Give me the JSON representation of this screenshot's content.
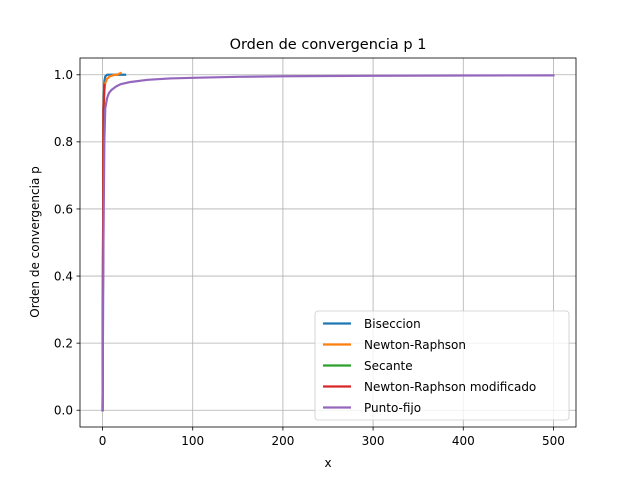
{
  "chart_data": {
    "type": "line",
    "title": "Orden de convergencia p 1",
    "xlabel": "x",
    "ylabel": "Orden de convergencia p",
    "xlim": [
      -25,
      525
    ],
    "ylim": [
      -0.05,
      1.05
    ],
    "xticks": [
      0,
      100,
      200,
      300,
      400,
      500
    ],
    "xtick_labels": [
      "0",
      "100",
      "200",
      "300",
      "400",
      "500"
    ],
    "yticks": [
      0.0,
      0.2,
      0.4,
      0.6,
      0.8,
      1.0
    ],
    "ytick_labels": [
      "0.0",
      "0.2",
      "0.4",
      "0.6",
      "0.8",
      "1.0"
    ],
    "grid": true,
    "legend_position": "lower-right",
    "series": [
      {
        "name": "Biseccion",
        "color": "#1f77b4",
        "x": [
          0,
          1,
          2,
          3,
          5,
          10,
          15,
          20,
          25
        ],
        "y": [
          0.0,
          0.9,
          0.98,
          0.995,
          1.0,
          1.0,
          1.0,
          1.0,
          1.0
        ]
      },
      {
        "name": "Newton-Raphson",
        "color": "#ff7f0e",
        "x": [
          0,
          1,
          2,
          3,
          5,
          8,
          12,
          16,
          20
        ],
        "y": [
          0.0,
          0.88,
          0.95,
          0.975,
          0.988,
          0.995,
          0.999,
          1.0,
          1.005
        ]
      },
      {
        "name": "Secante",
        "color": "#2ca02c",
        "x": [
          0,
          1,
          2
        ],
        "y": [
          0.0,
          0.9,
          0.97
        ]
      },
      {
        "name": "Newton-Raphson modificado",
        "color": "#d62728",
        "x": [
          0,
          1,
          2
        ],
        "y": [
          0.0,
          0.9,
          0.97
        ]
      },
      {
        "name": "Punto-fijo",
        "color": "#9467bd",
        "x": [
          0,
          1,
          2,
          3,
          5,
          7,
          10,
          15,
          20,
          30,
          50,
          75,
          100,
          150,
          200,
          250,
          300,
          350,
          400,
          450,
          500
        ],
        "y": [
          0.0,
          0.5,
          0.8,
          0.9,
          0.93,
          0.945,
          0.955,
          0.965,
          0.972,
          0.978,
          0.985,
          0.989,
          0.991,
          0.994,
          0.9955,
          0.9963,
          0.997,
          0.9975,
          0.9978,
          0.998,
          0.9982
        ]
      }
    ]
  }
}
